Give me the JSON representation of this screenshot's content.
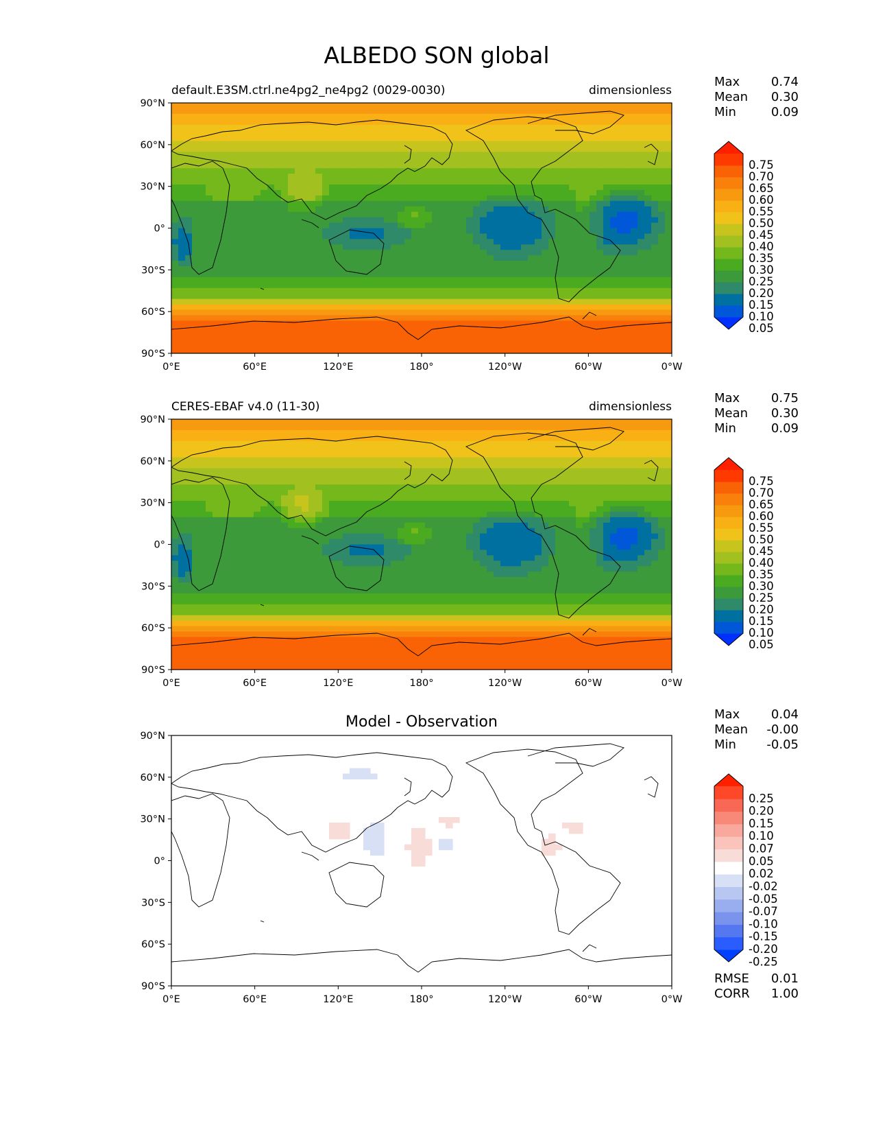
{
  "figure": {
    "title": "ALBEDO SON global"
  },
  "x_ticks": [
    "0°E",
    "60°E",
    "120°E",
    "180°",
    "120°W",
    "60°W",
    "0°W"
  ],
  "y_ticks": [
    "90°N",
    "60°N",
    "30°N",
    "0°",
    "30°S",
    "60°S",
    "90°S"
  ],
  "panels": [
    {
      "id": "model",
      "left_title": "default.E3SM.ctrl.ne4pg2_ne4pg2 (0029-0030)",
      "right_title": "dimensionless",
      "center_title": "",
      "stats": [
        {
          "label": "Max",
          "value": "0.74"
        },
        {
          "label": "Mean",
          "value": "0.30"
        },
        {
          "label": "Min",
          "value": "0.09"
        }
      ],
      "colorbar_ticks": [
        "0.75",
        "0.70",
        "0.65",
        "0.60",
        "0.55",
        "0.50",
        "0.45",
        "0.40",
        "0.35",
        "0.30",
        "0.25",
        "0.20",
        "0.15",
        "0.10",
        "0.05"
      ]
    },
    {
      "id": "obs",
      "left_title": "CERES-EBAF v4.0 (11-30)",
      "right_title": "dimensionless",
      "center_title": "",
      "stats": [
        {
          "label": "Max",
          "value": "0.75"
        },
        {
          "label": "Mean",
          "value": "0.30"
        },
        {
          "label": "Min",
          "value": "0.09"
        }
      ],
      "colorbar_ticks": [
        "0.75",
        "0.70",
        "0.65",
        "0.60",
        "0.55",
        "0.50",
        "0.45",
        "0.40",
        "0.35",
        "0.30",
        "0.25",
        "0.20",
        "0.15",
        "0.10",
        "0.05"
      ]
    },
    {
      "id": "diff",
      "left_title": "",
      "right_title": "",
      "center_title": "Model - Observation",
      "stats": [
        {
          "label": "Max",
          "value": "0.04"
        },
        {
          "label": "Mean",
          "value": "-0.00"
        },
        {
          "label": "Min",
          "value": "-0.05"
        }
      ],
      "colorbar_ticks": [
        "0.25",
        "0.20",
        "0.15",
        "0.10",
        "0.07",
        "0.05",
        "0.02",
        "-0.02",
        "-0.05",
        "-0.07",
        "-0.10",
        "-0.15",
        "-0.20",
        "-0.25"
      ],
      "metrics": [
        {
          "label": "RMSE",
          "value": "0.01"
        },
        {
          "label": "CORR",
          "value": "1.00"
        }
      ]
    }
  ],
  "colors": {
    "albedo_scale": [
      "#0030ff",
      "#0058d8",
      "#0070a0",
      "#2f8a6a",
      "#3c9a3a",
      "#4aaa20",
      "#74b81c",
      "#a2c020",
      "#c8c41e",
      "#f0c21a",
      "#f8b014",
      "#f89a10",
      "#fa800c",
      "#fa6206",
      "#ff3a00",
      "#ff2000"
    ],
    "diff_scale": [
      "#0040ff",
      "#2a5cff",
      "#5578f0",
      "#7a94ee",
      "#98aeee",
      "#b8c6f2",
      "#d8e0f6",
      "#ffffff",
      "#f8dcd8",
      "#fac4bc",
      "#f8a89c",
      "#f88878",
      "#f86854",
      "#ff4828",
      "#ff2000"
    ]
  },
  "chart_data": {
    "type": "heatmap",
    "title": "ALBEDO SON global",
    "xlim": [
      0,
      360
    ],
    "ylim": [
      -90,
      90
    ],
    "zonal_mean_albedo": {
      "lat": [
        -90,
        -75,
        -65,
        -55,
        -45,
        -35,
        -25,
        -15,
        -5,
        5,
        15,
        25,
        35,
        45,
        55,
        65,
        75,
        90
      ],
      "model": [
        0.72,
        0.7,
        0.6,
        0.48,
        0.36,
        0.28,
        0.22,
        0.2,
        0.22,
        0.26,
        0.26,
        0.26,
        0.3,
        0.36,
        0.42,
        0.48,
        0.56,
        0.6
      ],
      "obs": [
        0.72,
        0.7,
        0.6,
        0.48,
        0.36,
        0.28,
        0.22,
        0.2,
        0.22,
        0.26,
        0.26,
        0.26,
        0.3,
        0.36,
        0.42,
        0.48,
        0.56,
        0.6
      ]
    }
  }
}
